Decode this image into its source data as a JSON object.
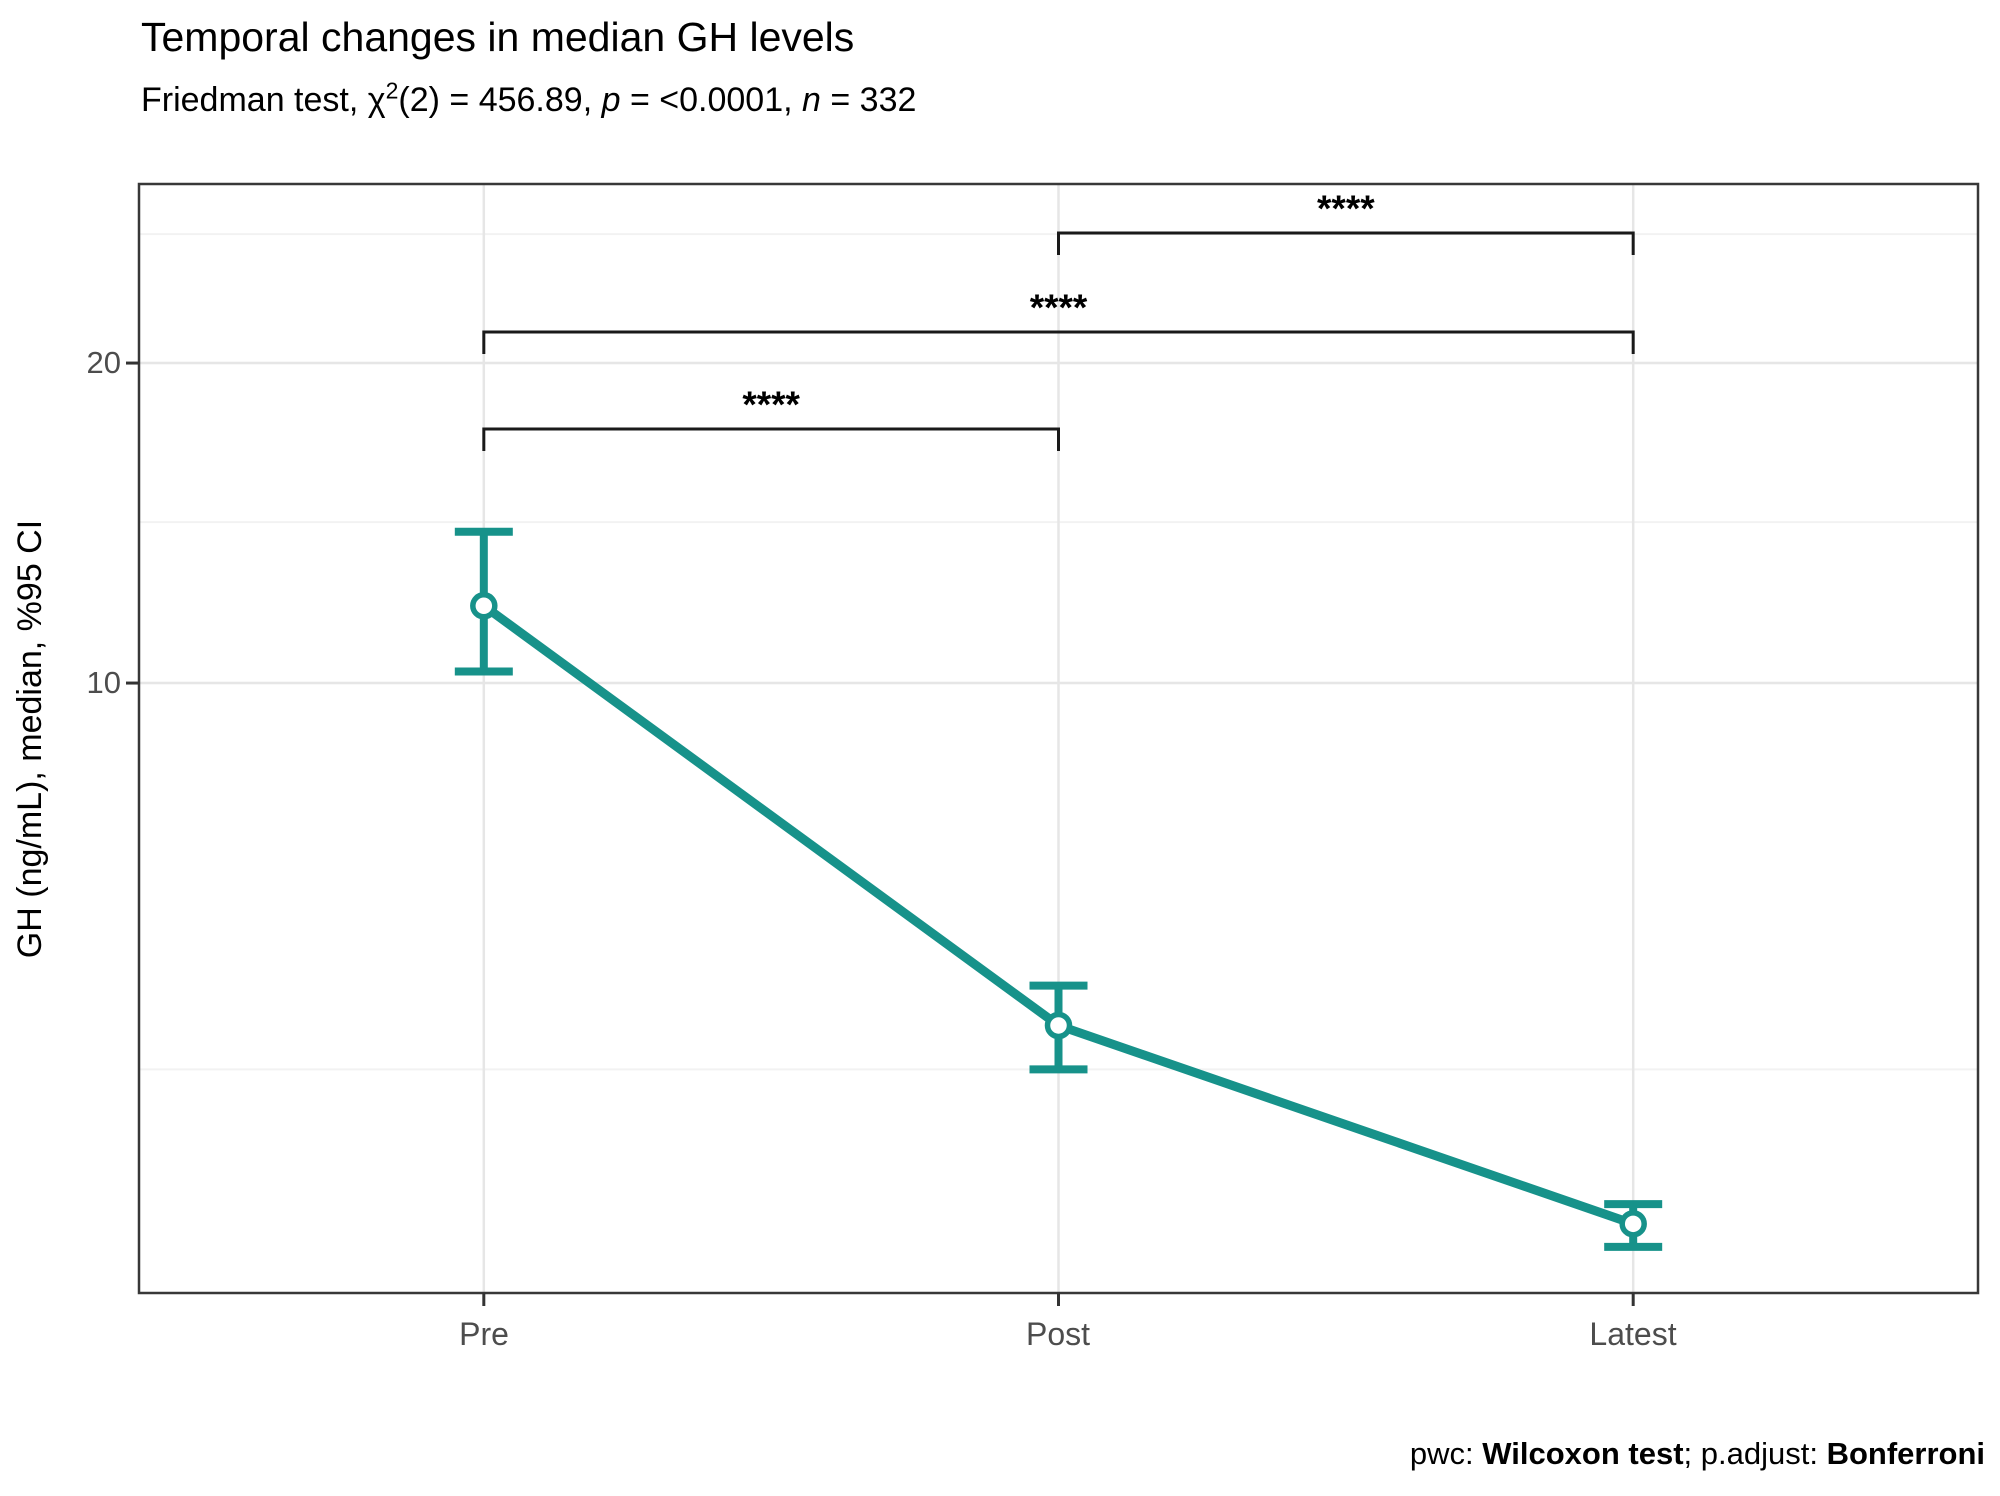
{
  "colors": {
    "accent_teal": "#17928A",
    "grid_major": "#E6E6E6",
    "grid_minor": "#F2F2F2",
    "panel_border": "#383838",
    "tick_mark": "#333333",
    "axis_text": "#4D4D4D",
    "bracket": "#1A1A1A"
  },
  "subtitle": {
    "prefix": "Friedman test, ",
    "chi": "χ",
    "chi_sup": "2",
    "stat": "(2) = 456.89, ",
    "p_label": "p",
    "p_value": " = <0.0001, ",
    "n_label": "n",
    "n_value": " = 332"
  },
  "caption": {
    "pwc_label": "pwc: ",
    "pwc_value": "Wilcoxon test",
    "padjust_label": "; p.adjust: ",
    "padjust_value": "Bonferroni"
  },
  "chart_data": {
    "type": "line",
    "title": "Temporal changes in median GH levels",
    "subtitle_text": "Friedman test, χ2(2) = 456.89, p = <0.0001, n = 332",
    "caption_text": "pwc: Wilcoxon test; p.adjust: Bonferroni",
    "xlabel": "",
    "ylabel": "GH (ng/mL), median, %95 CI",
    "categories": [
      "Pre",
      "Post",
      "Latest"
    ],
    "y_ticks": [
      20,
      10
    ],
    "y_tick_labels": [
      "20",
      "10"
    ],
    "y_minor_breaks": [
      25,
      14.6,
      2.5
    ],
    "y_scale": "sqrt (nonlinear), unlabeled below 10",
    "grid": "horizontal majors + minors, vertical at categories",
    "legend": "none",
    "series": [
      {
        "name": "GH median with 95% CI",
        "color": "#17928A",
        "values": [
          12.1,
          3.1,
          0.9
        ],
        "ci_low": [
          10.3,
          2.5,
          0.73
        ],
        "ci_high": [
          14.3,
          3.7,
          1.06
        ]
      }
    ],
    "significance": [
      {
        "group1": "Pre",
        "group2": "Post",
        "label": "****"
      },
      {
        "group1": "Pre",
        "group2": "Latest",
        "label": "****"
      },
      {
        "group1": "Post",
        "group2": "Latest",
        "label": "****"
      }
    ],
    "stats": {
      "test": "Friedman",
      "df": 2,
      "chi_squared": 456.89,
      "p": "<0.0001",
      "n": 332,
      "pairwise": "Wilcoxon test",
      "p_adjust": "Bonferroni"
    }
  }
}
